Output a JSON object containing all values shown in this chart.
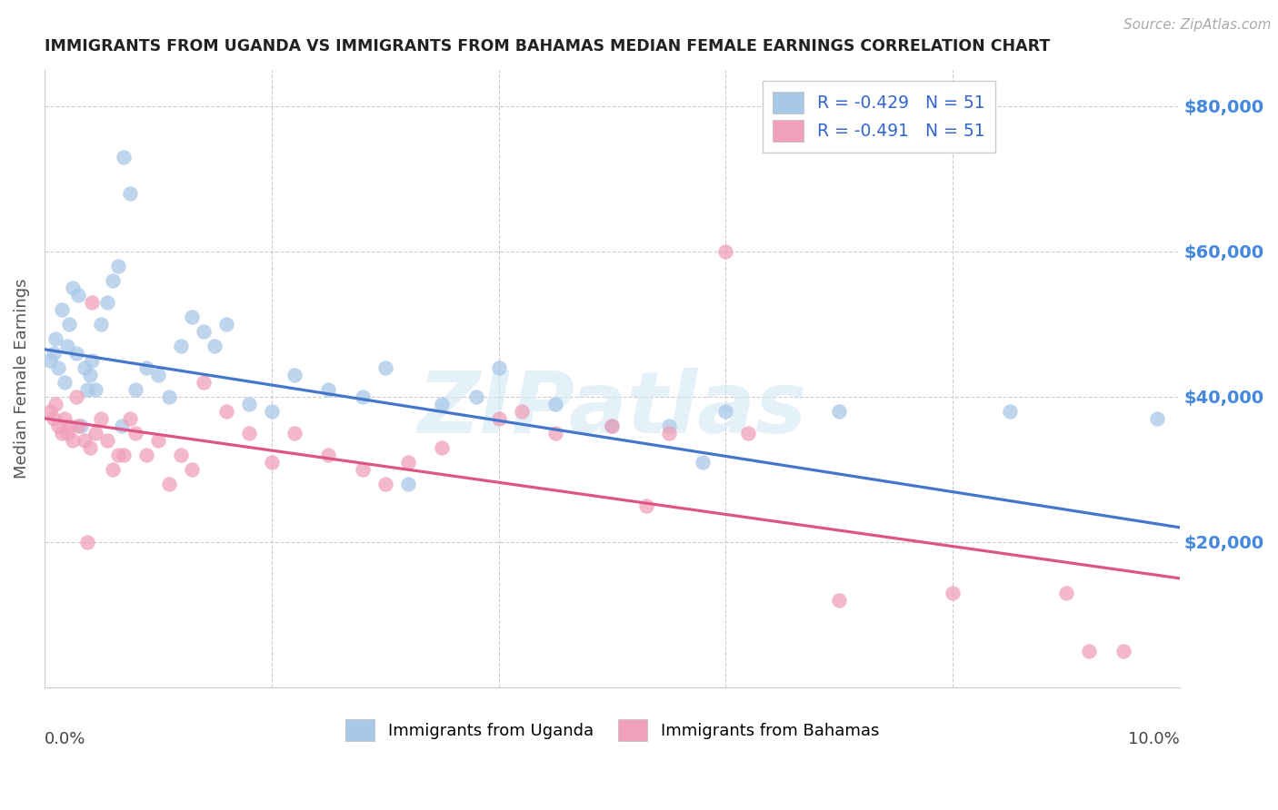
{
  "title": "IMMIGRANTS FROM UGANDA VS IMMIGRANTS FROM BAHAMAS MEDIAN FEMALE EARNINGS CORRELATION CHART",
  "source": "Source: ZipAtlas.com",
  "ylabel": "Median Female Earnings",
  "watermark": "ZIPatlas",
  "xlim": [
    0.0,
    10.0
  ],
  "ylim": [
    0,
    85000
  ],
  "yticks": [
    0,
    20000,
    40000,
    60000,
    80000
  ],
  "ytick_labels_right": [
    "",
    "$20,000",
    "$40,000",
    "$60,000",
    "$80,000"
  ],
  "xtick_label_left": "0.0%",
  "xtick_label_right": "10.0%",
  "legend_r_uganda": "R = -0.429",
  "legend_n_uganda": "N = 51",
  "legend_r_bahamas": "R = -0.491",
  "legend_n_bahamas": "N = 51",
  "color_uganda": "#a8c8e8",
  "color_bahamas": "#f0a0b8",
  "line_color_uganda": "#4477cc",
  "line_color_bahamas": "#dd5588",
  "background_color": "#ffffff",
  "grid_color": "#cccccc",
  "title_color": "#222222",
  "right_ytick_color": "#4488dd",
  "uganda_x": [
    0.05,
    0.08,
    0.1,
    0.12,
    0.15,
    0.18,
    0.2,
    0.22,
    0.25,
    0.28,
    0.3,
    0.35,
    0.4,
    0.45,
    0.5,
    0.55,
    0.6,
    0.65,
    0.7,
    0.75,
    0.8,
    0.9,
    1.0,
    1.1,
    1.2,
    1.3,
    1.5,
    1.6,
    1.8,
    2.0,
    2.2,
    2.5,
    2.8,
    3.0,
    3.2,
    3.5,
    3.8,
    4.0,
    4.5,
    5.0,
    5.5,
    5.8,
    6.0,
    7.0,
    8.5,
    9.8,
    1.4,
    0.42,
    0.38,
    0.32,
    0.68
  ],
  "uganda_y": [
    45000,
    46000,
    48000,
    44000,
    52000,
    42000,
    47000,
    50000,
    55000,
    46000,
    54000,
    44000,
    43000,
    41000,
    50000,
    53000,
    56000,
    58000,
    73000,
    68000,
    41000,
    44000,
    43000,
    40000,
    47000,
    51000,
    47000,
    50000,
    39000,
    38000,
    43000,
    41000,
    40000,
    44000,
    28000,
    39000,
    40000,
    44000,
    39000,
    36000,
    36000,
    31000,
    38000,
    38000,
    38000,
    37000,
    49000,
    45000,
    41000,
    36000,
    36000
  ],
  "bahamas_x": [
    0.05,
    0.08,
    0.1,
    0.12,
    0.15,
    0.18,
    0.2,
    0.22,
    0.25,
    0.28,
    0.3,
    0.35,
    0.4,
    0.45,
    0.5,
    0.55,
    0.6,
    0.65,
    0.7,
    0.75,
    0.8,
    0.9,
    1.0,
    1.2,
    1.4,
    1.6,
    1.8,
    2.0,
    2.5,
    3.0,
    3.5,
    4.0,
    4.5,
    5.0,
    5.5,
    6.0,
    7.0,
    8.0,
    9.0,
    9.5,
    0.38,
    0.42,
    1.1,
    1.3,
    2.2,
    2.8,
    3.2,
    4.2,
    5.3,
    6.2,
    9.2
  ],
  "bahamas_y": [
    38000,
    37000,
    39000,
    36000,
    35000,
    37000,
    35000,
    36000,
    34000,
    40000,
    36000,
    34000,
    33000,
    35000,
    37000,
    34000,
    30000,
    32000,
    32000,
    37000,
    35000,
    32000,
    34000,
    32000,
    42000,
    38000,
    35000,
    31000,
    32000,
    28000,
    33000,
    37000,
    35000,
    36000,
    35000,
    60000,
    12000,
    13000,
    13000,
    5000,
    20000,
    53000,
    28000,
    30000,
    35000,
    30000,
    31000,
    38000,
    25000,
    35000,
    5000
  ],
  "uganda_line_x0": 0.0,
  "uganda_line_y0": 46500,
  "uganda_line_x1": 10.0,
  "uganda_line_y1": 22000,
  "bahamas_line_x0": 0.0,
  "bahamas_line_y0": 37000,
  "bahamas_line_x1": 10.0,
  "bahamas_line_y1": 15000
}
